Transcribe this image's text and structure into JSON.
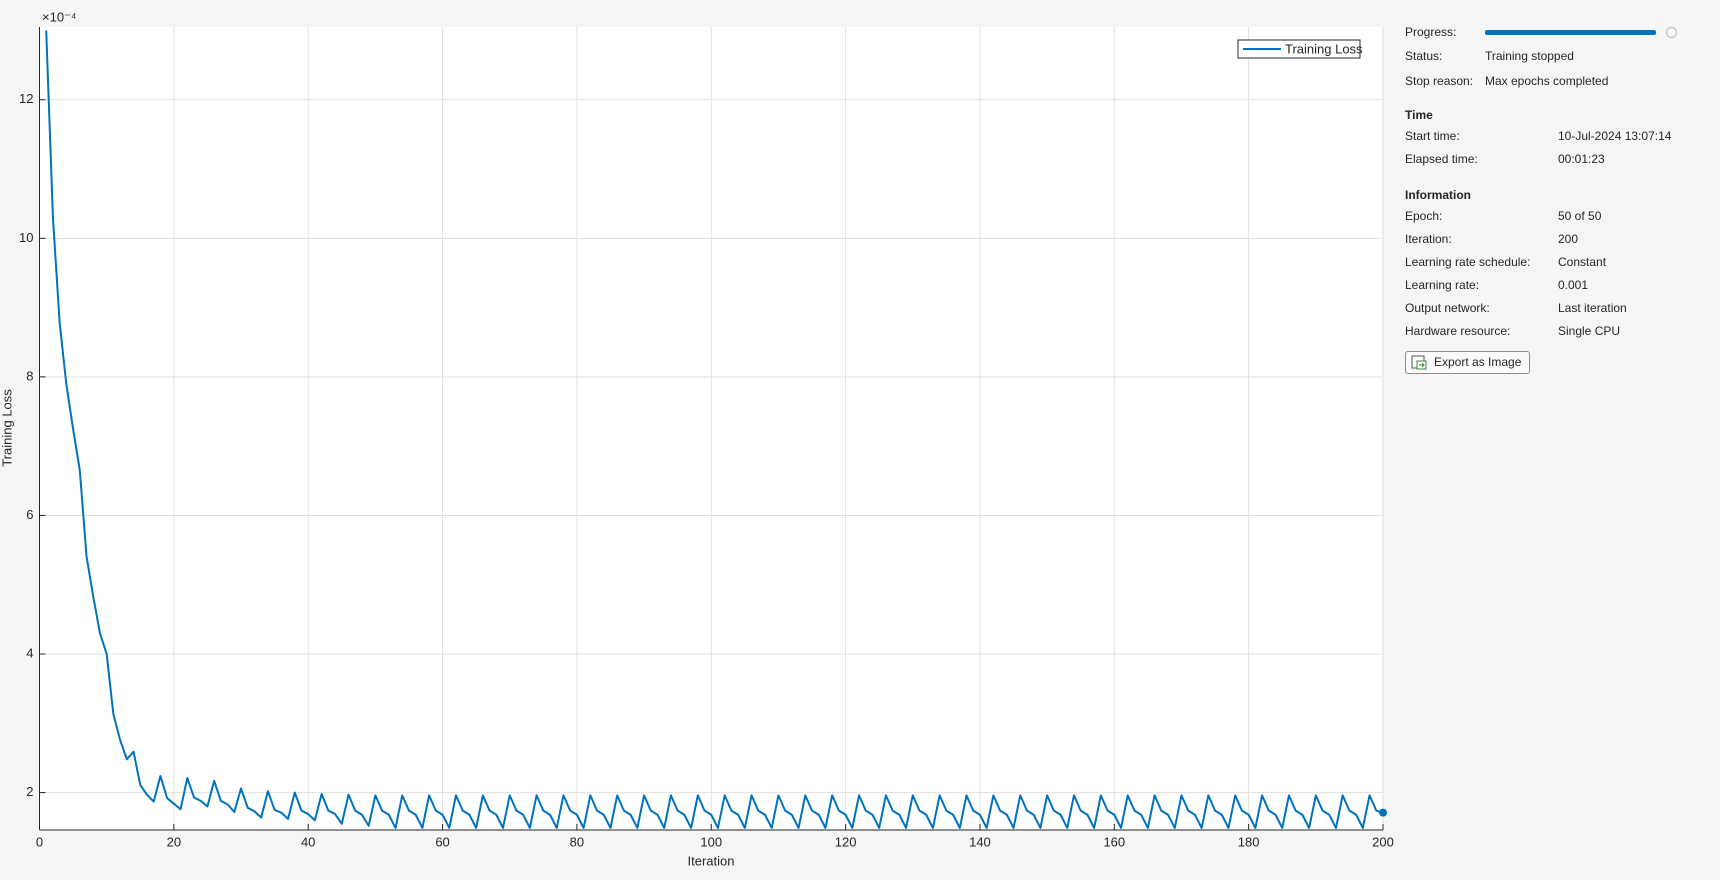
{
  "chart_data": {
    "type": "line",
    "x_label": "Iteration",
    "y_label": "Training Loss",
    "y_exponent_label": "×10⁻⁴",
    "xlim": [
      0,
      200
    ],
    "ylim": [
      1.46,
      13.05
    ],
    "xticks": [
      0,
      20,
      40,
      60,
      80,
      100,
      120,
      140,
      160,
      180,
      200
    ],
    "yticks": [
      2,
      4,
      6,
      8,
      10,
      12
    ],
    "grid": true,
    "legend": "northeast",
    "x": [
      1,
      2,
      3,
      4,
      5,
      6,
      7,
      8,
      9,
      10,
      11,
      12,
      13,
      14,
      15,
      16,
      17,
      18,
      19,
      20,
      21,
      22,
      23,
      24,
      25,
      26,
      27,
      28,
      29,
      30,
      31,
      32,
      33,
      34,
      35,
      36,
      37,
      38,
      39,
      40,
      41,
      42,
      43,
      44,
      45,
      46,
      47,
      48,
      49,
      50,
      51,
      52,
      53,
      54,
      55,
      56,
      57,
      58,
      59,
      60,
      61,
      62,
      63,
      64,
      65,
      66,
      67,
      68,
      69,
      70,
      71,
      72,
      73,
      74,
      75,
      76,
      77,
      78,
      79,
      80,
      81,
      82,
      83,
      84,
      85,
      86,
      87,
      88,
      89,
      90,
      91,
      92,
      93,
      94,
      95,
      96,
      97,
      98,
      99,
      100,
      101,
      102,
      103,
      104,
      105,
      106,
      107,
      108,
      109,
      110,
      111,
      112,
      113,
      114,
      115,
      116,
      117,
      118,
      119,
      120,
      121,
      122,
      123,
      124,
      125,
      126,
      127,
      128,
      129,
      130,
      131,
      132,
      133,
      134,
      135,
      136,
      137,
      138,
      139,
      140,
      141,
      142,
      143,
      144,
      145,
      146,
      147,
      148,
      149,
      150,
      151,
      152,
      153,
      154,
      155,
      156,
      157,
      158,
      159,
      160,
      161,
      162,
      163,
      164,
      165,
      166,
      167,
      168,
      169,
      170,
      171,
      172,
      173,
      174,
      175,
      176,
      177,
      178,
      179,
      180,
      181,
      182,
      183,
      184,
      185,
      186,
      187,
      188,
      189,
      190,
      191,
      192,
      193,
      194,
      195,
      196,
      197,
      198,
      199,
      200
    ],
    "series": [
      {
        "name": "Training Loss",
        "color": "#0072bd",
        "values": [
          13.0,
          10.3,
          8.78,
          7.89,
          7.25,
          6.65,
          5.41,
          4.83,
          4.3,
          4.0,
          3.13,
          2.76,
          2.48,
          2.59,
          2.11,
          1.97,
          1.87,
          2.24,
          1.92,
          1.84,
          1.76,
          2.21,
          1.93,
          1.88,
          1.8,
          2.17,
          1.88,
          1.83,
          1.72,
          2.06,
          1.78,
          1.73,
          1.64,
          2.02,
          1.75,
          1.71,
          1.62,
          2.0,
          1.74,
          1.69,
          1.6,
          1.98,
          1.74,
          1.69,
          1.55,
          1.97,
          1.74,
          1.68,
          1.52,
          1.96,
          1.74,
          1.68,
          1.49,
          1.96,
          1.74,
          1.68,
          1.49,
          1.96,
          1.74,
          1.68,
          1.49,
          1.96,
          1.74,
          1.68,
          1.49,
          1.96,
          1.74,
          1.68,
          1.49,
          1.96,
          1.74,
          1.68,
          1.49,
          1.96,
          1.74,
          1.68,
          1.49,
          1.96,
          1.74,
          1.68,
          1.49,
          1.96,
          1.74,
          1.68,
          1.49,
          1.96,
          1.74,
          1.68,
          1.49,
          1.96,
          1.74,
          1.68,
          1.49,
          1.96,
          1.74,
          1.68,
          1.49,
          1.96,
          1.74,
          1.68,
          1.49,
          1.96,
          1.74,
          1.68,
          1.49,
          1.96,
          1.74,
          1.68,
          1.49,
          1.96,
          1.74,
          1.68,
          1.49,
          1.96,
          1.74,
          1.68,
          1.49,
          1.96,
          1.74,
          1.68,
          1.49,
          1.96,
          1.74,
          1.68,
          1.49,
          1.96,
          1.74,
          1.68,
          1.49,
          1.96,
          1.74,
          1.68,
          1.49,
          1.96,
          1.74,
          1.68,
          1.49,
          1.96,
          1.74,
          1.68,
          1.49,
          1.96,
          1.74,
          1.68,
          1.49,
          1.96,
          1.74,
          1.68,
          1.49,
          1.96,
          1.74,
          1.68,
          1.49,
          1.96,
          1.74,
          1.68,
          1.49,
          1.96,
          1.74,
          1.68,
          1.49,
          1.96,
          1.74,
          1.68,
          1.49,
          1.96,
          1.74,
          1.68,
          1.49,
          1.96,
          1.74,
          1.68,
          1.49,
          1.96,
          1.74,
          1.68,
          1.49,
          1.96,
          1.74,
          1.68,
          1.49,
          1.96,
          1.74,
          1.68,
          1.49,
          1.96,
          1.74,
          1.68,
          1.49,
          1.96,
          1.74,
          1.68,
          1.49,
          1.96,
          1.74,
          1.68,
          1.49,
          1.96,
          1.74,
          1.71
        ]
      }
    ]
  },
  "info_panel": {
    "progress_label": "Progress:",
    "status_rows": [
      [
        "Status:",
        "Training stopped"
      ],
      [
        "Stop reason:",
        "Max epochs completed"
      ]
    ],
    "sections": [
      {
        "title": "Time",
        "rows": [
          [
            "Start time:",
            "10-Jul-2024 13:07:14"
          ],
          [
            "Elapsed time:",
            "00:01:23"
          ]
        ]
      },
      {
        "title": "Information",
        "rows": [
          [
            "Epoch:",
            "50 of 50"
          ],
          [
            "Iteration:",
            "200"
          ],
          [
            "Learning rate schedule:",
            "Constant"
          ],
          [
            "Learning rate:",
            "0.001"
          ],
          [
            "Output network:",
            "Last iteration"
          ],
          [
            "Hardware resource:",
            "Single CPU"
          ]
        ]
      }
    ],
    "button": "Export as Image"
  }
}
